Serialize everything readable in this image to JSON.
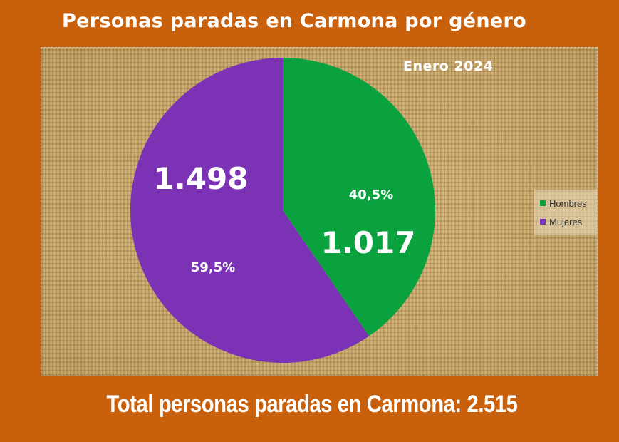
{
  "title": "Personas paradas en Carmona por género",
  "subtitle": "Enero 2024",
  "footer": "Total personas paradas en Carmona: 2.515",
  "colors": {
    "hombres": "#0aa23e",
    "mujeres": "#7b32b4",
    "background": "#c9610c"
  },
  "chart_data": {
    "type": "pie",
    "categories": [
      "Hombres",
      "Mujeres"
    ],
    "values": [
      1017,
      1498
    ],
    "value_labels": [
      "1.017",
      "1.498"
    ],
    "percent_labels": [
      "40,5%",
      "59,5%"
    ],
    "legend_position": "right"
  }
}
